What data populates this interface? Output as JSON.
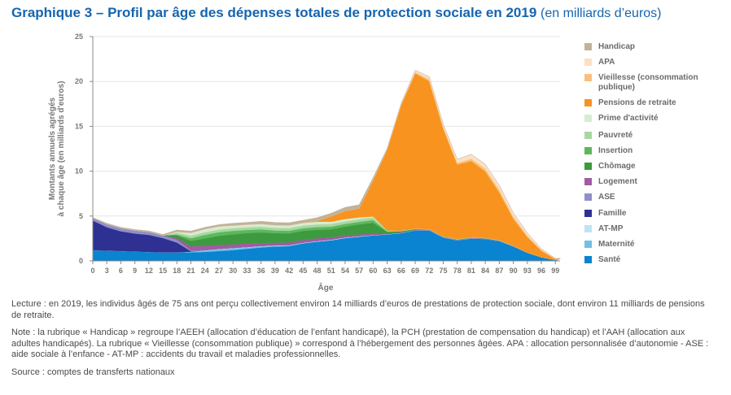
{
  "title": {
    "main": "Graphique 3 – Profil par âge des dépenses totales de protection sociale en 2019",
    "unit": "(en milliards d’euros)"
  },
  "chart_data": {
    "type": "area",
    "stacked": true,
    "xlabel": "Âge",
    "ylabel": "Montants annuels agrégés à chaque âge (en milliards d'euros)",
    "ylim": [
      0,
      25
    ],
    "yticks": [
      0,
      5,
      10,
      15,
      20,
      25
    ],
    "xlim": [
      0,
      100
    ],
    "xticks": [
      0,
      3,
      6,
      9,
      12,
      15,
      18,
      21,
      24,
      27,
      30,
      33,
      36,
      39,
      42,
      45,
      48,
      51,
      54,
      57,
      60,
      63,
      66,
      69,
      72,
      75,
      78,
      81,
      84,
      87,
      90,
      93,
      96,
      99
    ],
    "grid": "horizontal",
    "legend_position": "right",
    "x": [
      0,
      3,
      6,
      9,
      12,
      15,
      18,
      21,
      24,
      27,
      30,
      33,
      36,
      39,
      42,
      45,
      48,
      51,
      54,
      57,
      60,
      63,
      66,
      69,
      72,
      75,
      78,
      81,
      84,
      87,
      90,
      93,
      96,
      99
    ],
    "series": [
      {
        "name": "Santé",
        "color": "#0a83d0",
        "values": [
          1.2,
          1.15,
          1.1,
          1.05,
          1.0,
          0.95,
          0.95,
          0.95,
          1.0,
          1.1,
          1.2,
          1.35,
          1.5,
          1.6,
          1.65,
          1.95,
          2.15,
          2.3,
          2.55,
          2.7,
          2.85,
          2.95,
          3.1,
          3.4,
          3.4,
          2.6,
          2.3,
          2.5,
          2.45,
          2.2,
          1.6,
          0.9,
          0.4,
          0.1
        ]
      },
      {
        "name": "Maternité",
        "color": "#6fc0e8",
        "values": [
          0,
          0,
          0,
          0,
          0,
          0,
          0,
          0.05,
          0.15,
          0.2,
          0.2,
          0.15,
          0.12,
          0.08,
          0.05,
          0.03,
          0,
          0,
          0,
          0,
          0,
          0,
          0,
          0,
          0,
          0,
          0,
          0,
          0,
          0,
          0,
          0,
          0,
          0
        ]
      },
      {
        "name": "AT-MP",
        "color": "#bfe3f4",
        "values": [
          0,
          0,
          0,
          0,
          0,
          0,
          0,
          0.03,
          0.05,
          0.05,
          0.05,
          0.05,
          0.05,
          0.06,
          0.06,
          0.06,
          0.07,
          0.07,
          0.07,
          0.06,
          0.05,
          0.04,
          0.04,
          0.03,
          0.03,
          0.03,
          0.03,
          0.03,
          0.02,
          0.02,
          0.01,
          0,
          0,
          0
        ]
      },
      {
        "name": "Famille",
        "color": "#2e3192",
        "values": [
          3.3,
          2.6,
          2.2,
          2.0,
          1.9,
          1.6,
          1.1,
          0.05,
          0,
          0,
          0,
          0,
          0,
          0,
          0,
          0,
          0,
          0,
          0,
          0,
          0,
          0,
          0,
          0,
          0,
          0,
          0,
          0,
          0,
          0,
          0,
          0,
          0,
          0
        ]
      },
      {
        "name": "ASE",
        "color": "#8f8fc9",
        "values": [
          0.3,
          0.35,
          0.35,
          0.35,
          0.35,
          0.3,
          0.3,
          0.1,
          0,
          0,
          0,
          0,
          0,
          0,
          0,
          0,
          0,
          0,
          0,
          0,
          0,
          0,
          0,
          0,
          0,
          0,
          0,
          0,
          0,
          0,
          0,
          0,
          0,
          0
        ]
      },
      {
        "name": "Logement",
        "color": "#a15ba3",
        "values": [
          0,
          0,
          0,
          0,
          0,
          0,
          0.2,
          0.45,
          0.5,
          0.45,
          0.4,
          0.4,
          0.35,
          0.3,
          0.3,
          0.3,
          0.3,
          0.25,
          0.25,
          0.2,
          0.15,
          0.05,
          0.05,
          0.05,
          0.05,
          0.05,
          0.05,
          0.05,
          0.05,
          0.05,
          0.03,
          0.02,
          0.01,
          0
        ]
      },
      {
        "name": "Chômage",
        "color": "#3d9a3f",
        "values": [
          0,
          0,
          0,
          0,
          0,
          0,
          0.3,
          0.6,
          0.8,
          1.0,
          1.1,
          1.15,
          1.15,
          1.05,
          1.0,
          1.0,
          0.95,
          0.9,
          0.95,
          1.1,
          1.2,
          0.2,
          0.1,
          0.05,
          0,
          0,
          0,
          0,
          0,
          0,
          0,
          0,
          0,
          0
        ]
      },
      {
        "name": "Insertion",
        "color": "#5cb85c",
        "values": [
          0,
          0,
          0,
          0,
          0,
          0,
          0.1,
          0.3,
          0.4,
          0.4,
          0.4,
          0.35,
          0.35,
          0.3,
          0.3,
          0.3,
          0.3,
          0.3,
          0.3,
          0.3,
          0.3,
          0.05,
          0.03,
          0.02,
          0,
          0,
          0,
          0,
          0,
          0,
          0,
          0,
          0,
          0
        ]
      },
      {
        "name": "Pauvreté",
        "color": "#a8d8a0",
        "values": [
          0,
          0,
          0,
          0,
          0,
          0,
          0.2,
          0.3,
          0.3,
          0.3,
          0.3,
          0.3,
          0.3,
          0.3,
          0.3,
          0.3,
          0.3,
          0.3,
          0.3,
          0.3,
          0.3,
          0.1,
          0.05,
          0.05,
          0.05,
          0.05,
          0.05,
          0.05,
          0.05,
          0.05,
          0.05,
          0.03,
          0.02,
          0.01
        ]
      },
      {
        "name": "Prime d'activité",
        "color": "#d6edd0",
        "values": [
          0,
          0,
          0,
          0,
          0,
          0,
          0.1,
          0.3,
          0.35,
          0.35,
          0.3,
          0.3,
          0.3,
          0.3,
          0.3,
          0.3,
          0.3,
          0.25,
          0.25,
          0.2,
          0.1,
          0,
          0,
          0,
          0,
          0,
          0,
          0,
          0,
          0,
          0,
          0,
          0,
          0
        ]
      },
      {
        "name": "Pensions de retraite",
        "color": "#f7931e",
        "values": [
          0,
          0,
          0,
          0,
          0,
          0,
          0,
          0,
          0,
          0,
          0,
          0,
          0,
          0,
          0,
          0,
          0.1,
          0.6,
          0.9,
          1.0,
          4.0,
          9.0,
          14.0,
          17.3,
          16.5,
          12.0,
          8.3,
          8.5,
          7.4,
          5.3,
          3.0,
          1.7,
          0.7,
          0.1
        ]
      },
      {
        "name": "Vieillesse (consommation publique)",
        "color": "#f9c07a",
        "values": [
          0,
          0,
          0,
          0,
          0,
          0,
          0,
          0,
          0,
          0,
          0,
          0,
          0,
          0,
          0,
          0,
          0,
          0,
          0,
          0,
          0.05,
          0.05,
          0.1,
          0.15,
          0.2,
          0.2,
          0.2,
          0.25,
          0.3,
          0.3,
          0.25,
          0.15,
          0.08,
          0.02
        ]
      },
      {
        "name": "APA",
        "color": "#fbe0c3",
        "values": [
          0,
          0,
          0,
          0,
          0,
          0,
          0,
          0,
          0,
          0,
          0,
          0,
          0,
          0,
          0,
          0,
          0,
          0,
          0,
          0,
          0,
          0.02,
          0.05,
          0.2,
          0.3,
          0.3,
          0.4,
          0.5,
          0.5,
          0.5,
          0.4,
          0.3,
          0.15,
          0.05
        ]
      },
      {
        "name": "Handicap",
        "color": "#c2b29a",
        "values": [
          0.05,
          0.1,
          0.1,
          0.1,
          0.1,
          0.1,
          0.2,
          0.2,
          0.2,
          0.2,
          0.25,
          0.25,
          0.3,
          0.3,
          0.3,
          0.3,
          0.35,
          0.35,
          0.4,
          0.4,
          0.3,
          0.1,
          0.05,
          0,
          0,
          0,
          0,
          0,
          0,
          0,
          0,
          0,
          0,
          0
        ]
      }
    ]
  },
  "legend": [
    {
      "label": "Handicap",
      "color": "#c2b29a"
    },
    {
      "label": "APA",
      "color": "#fbe0c3"
    },
    {
      "label": "Vieillesse (consommation publique)",
      "color": "#f9c07a"
    },
    {
      "label": "Pensions de retraite",
      "color": "#f7931e"
    },
    {
      "label": "Prime d'activité",
      "color": "#d6edd0"
    },
    {
      "label": "Pauvreté",
      "color": "#a8d8a0"
    },
    {
      "label": "Insertion",
      "color": "#5cb85c"
    },
    {
      "label": "Chômage",
      "color": "#3d9a3f"
    },
    {
      "label": "Logement",
      "color": "#a15ba3"
    },
    {
      "label": "ASE",
      "color": "#8f8fc9"
    },
    {
      "label": "Famille",
      "color": "#2e3192"
    },
    {
      "label": "AT-MP",
      "color": "#bfe3f4"
    },
    {
      "label": "Maternité",
      "color": "#6fc0e8"
    },
    {
      "label": "Santé",
      "color": "#0a83d0"
    }
  ],
  "notes": {
    "lecture": "Lecture : en 2019, les individus âgés de 75 ans ont perçu collectivement environ 14 milliards d’euros de prestations de protection sociale, dont environ 11 milliards de pensions de retraite.",
    "note": "Note : la rubrique « Handicap » regroupe l’AEEH (allocation d’éducation de l’enfant handicapé), la PCH (prestation de compensation du handicap) et l’AAH (allocation aux adultes handicapés). La rubrique « Vieillesse (consommation publique) » correspond à l’hébergement des personnes âgées. APA : allocation personnalisée d’autonomie - ASE : aide sociale à l’enfance - AT-MP : accidents du travail et maladies professionnelles.",
    "source": "Source : comptes de transferts nationaux"
  }
}
